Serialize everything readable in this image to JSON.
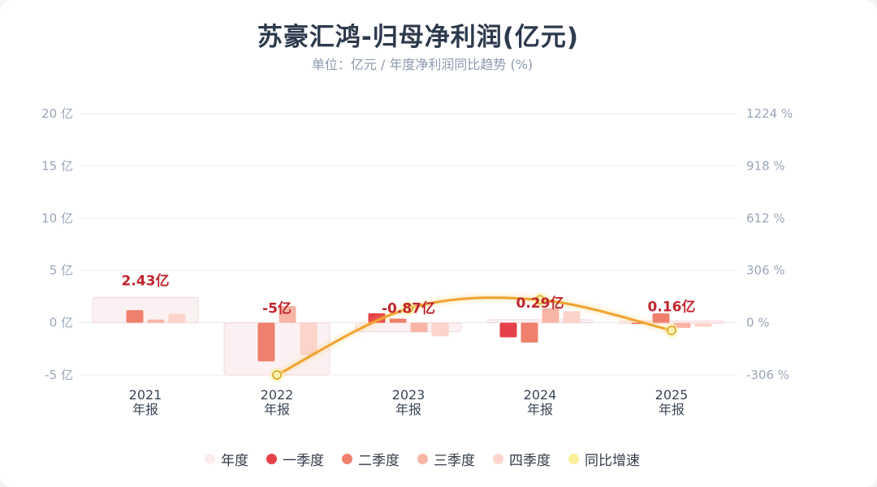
{
  "title": "苏豪汇鸿-归母净利润(亿元)",
  "subtitle": "单位：亿元 / 年度净利润同比趋势 (%)",
  "legend": [
    {
      "label": "年度",
      "color": "#fcecee"
    },
    {
      "label": "一季度",
      "color": "#e5404a"
    },
    {
      "label": "二季度",
      "color": "#f0806e"
    },
    {
      "label": "三季度",
      "color": "#f8b5a6"
    },
    {
      "label": "四季度",
      "color": "#fcd4cc"
    },
    {
      "label": "同比增速",
      "color": "#fbef9a"
    }
  ],
  "chart_data": {
    "type": "bar",
    "categories": [
      "2021\n年报",
      "2022\n年报",
      "2023\n年报",
      "2024\n年报",
      "2025\n年报"
    ],
    "annual_labels": [
      "2.43亿",
      "-5亿",
      "-0.87亿",
      "0.29亿",
      "0.16亿"
    ],
    "y_left_ticks": [
      "20 亿",
      "15 亿",
      "10 亿",
      "5 亿",
      "0 亿",
      "-5 亿"
    ],
    "y_right_ticks": [
      "1224 %",
      "918 %",
      "612 %",
      "306 %",
      "0 %",
      "-306 %"
    ],
    "ylim_left": [
      -5,
      20
    ],
    "ylim_right": [
      -306,
      1224
    ],
    "series": [
      {
        "name": "年度",
        "values": [
          2.43,
          -5,
          -0.87,
          0.29,
          0.16
        ]
      },
      {
        "name": "一季度",
        "values": [
          0,
          0,
          0.9,
          -1.4,
          -0.1
        ]
      },
      {
        "name": "二季度",
        "values": [
          1.2,
          -3.7,
          0.4,
          -1.9,
          0.9
        ]
      },
      {
        "name": "三季度",
        "values": [
          0.3,
          1.6,
          -0.9,
          1.4,
          -0.5
        ]
      },
      {
        "name": "四季度",
        "values": [
          0.85,
          -3.1,
          -1.3,
          1.1,
          -0.4
        ]
      }
    ],
    "yoy_growth": [
      null,
      -306,
      83,
      134,
      -45
    ],
    "grid": true,
    "legend_position": "bottom"
  }
}
